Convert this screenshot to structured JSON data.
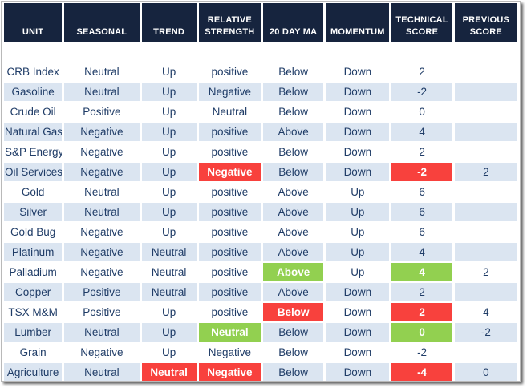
{
  "table": {
    "columns": [
      {
        "key": "unit",
        "label": "UNIT"
      },
      {
        "key": "seasonal",
        "label": "SEASONAL"
      },
      {
        "key": "trend",
        "label": "TREND"
      },
      {
        "key": "relative_strength",
        "label": "RELATIVE STRENGTH"
      },
      {
        "key": "twenty_day_ma",
        "label": "20 DAY MA"
      },
      {
        "key": "momentum",
        "label": "MOMENTUM"
      },
      {
        "key": "technical_score",
        "label": "TECHNICAL SCORE"
      },
      {
        "key": "previous_score",
        "label": "PREVIOUS SCORE"
      }
    ],
    "rows": [
      {
        "unit": "CRB Index",
        "seasonal": "Neutral",
        "trend": "Up",
        "relative_strength": "positive",
        "twenty_day_ma": "Below",
        "momentum": "Down",
        "technical_score": "2",
        "previous_score": "",
        "highlights": {}
      },
      {
        "unit": "Gasoline",
        "seasonal": "Neutral",
        "trend": "Up",
        "relative_strength": "Negative",
        "twenty_day_ma": "Below",
        "momentum": "Down",
        "technical_score": "-2",
        "previous_score": "",
        "highlights": {}
      },
      {
        "unit": "Crude Oil",
        "seasonal": "Positive",
        "trend": "Up",
        "relative_strength": "Neutral",
        "twenty_day_ma": "Below",
        "momentum": "Down",
        "technical_score": "0",
        "previous_score": "",
        "highlights": {}
      },
      {
        "unit": "Natural Gas",
        "seasonal": "Negative",
        "trend": "Up",
        "relative_strength": "positive",
        "twenty_day_ma": "Above",
        "momentum": "Down",
        "technical_score": "4",
        "previous_score": "",
        "highlights": {}
      },
      {
        "unit": "S&P Energy",
        "seasonal": "Negative",
        "trend": "Up",
        "relative_strength": "positive",
        "twenty_day_ma": "Below",
        "momentum": "Down",
        "technical_score": "2",
        "previous_score": "",
        "highlights": {}
      },
      {
        "unit": "Oil Services",
        "seasonal": "Negative",
        "trend": "Up",
        "relative_strength": "Negative",
        "twenty_day_ma": "Below",
        "momentum": "Down",
        "technical_score": "-2",
        "previous_score": "2",
        "highlights": {
          "relative_strength": "red",
          "technical_score": "red"
        }
      },
      {
        "unit": "Gold",
        "seasonal": "Neutral",
        "trend": "Up",
        "relative_strength": "positive",
        "twenty_day_ma": "Above",
        "momentum": "Up",
        "technical_score": "6",
        "previous_score": "",
        "highlights": {}
      },
      {
        "unit": "Silver",
        "seasonal": "Neutral",
        "trend": "Up",
        "relative_strength": "positive",
        "twenty_day_ma": "Above",
        "momentum": "Up",
        "technical_score": "6",
        "previous_score": "",
        "highlights": {}
      },
      {
        "unit": "Gold Bug",
        "seasonal": "Negative",
        "trend": "Up",
        "relative_strength": "positive",
        "twenty_day_ma": "Above",
        "momentum": "Up",
        "technical_score": "6",
        "previous_score": "",
        "highlights": {}
      },
      {
        "unit": "Platinum",
        "seasonal": "Negative",
        "trend": "Neutral",
        "relative_strength": "positive",
        "twenty_day_ma": "Above",
        "momentum": "Up",
        "technical_score": "4",
        "previous_score": "",
        "highlights": {}
      },
      {
        "unit": "Palladium",
        "seasonal": "Negative",
        "trend": "Neutral",
        "relative_strength": "positive",
        "twenty_day_ma": "Above",
        "momentum": "Up",
        "technical_score": "4",
        "previous_score": "2",
        "highlights": {
          "twenty_day_ma": "green",
          "technical_score": "green"
        }
      },
      {
        "unit": "Copper",
        "seasonal": "Positive",
        "trend": "Neutral",
        "relative_strength": "positive",
        "twenty_day_ma": "Above",
        "momentum": "Down",
        "technical_score": "2",
        "previous_score": "",
        "highlights": {}
      },
      {
        "unit": "TSX M&M",
        "seasonal": "Positive",
        "trend": "Up",
        "relative_strength": "positive",
        "twenty_day_ma": "Below",
        "momentum": "Down",
        "technical_score": "2",
        "previous_score": "4",
        "highlights": {
          "twenty_day_ma": "red",
          "technical_score": "red"
        }
      },
      {
        "unit": "Lumber",
        "seasonal": "Neutral",
        "trend": "Up",
        "relative_strength": "Neutral",
        "twenty_day_ma": "Below",
        "momentum": "Down",
        "technical_score": "0",
        "previous_score": "-2",
        "highlights": {
          "relative_strength": "green",
          "technical_score": "green"
        }
      },
      {
        "unit": "Grain",
        "seasonal": "Negative",
        "trend": "Up",
        "relative_strength": "Negative",
        "twenty_day_ma": "Below",
        "momentum": "Down",
        "technical_score": "-2",
        "previous_score": "",
        "highlights": {}
      },
      {
        "unit": "Agriculture",
        "seasonal": "Neutral",
        "trend": "Neutral",
        "relative_strength": "Negative",
        "twenty_day_ma": "Below",
        "momentum": "Down",
        "technical_score": "-4",
        "previous_score": "0",
        "highlights": {
          "trend": "red",
          "relative_strength": "red",
          "technical_score": "red"
        }
      }
    ]
  },
  "colors": {
    "header_bg": "#16243e",
    "text_navy": "#1f3c67",
    "row_alt": "#dbe5f1",
    "highlight_red": "#f8413d",
    "highlight_green": "#92d050"
  }
}
